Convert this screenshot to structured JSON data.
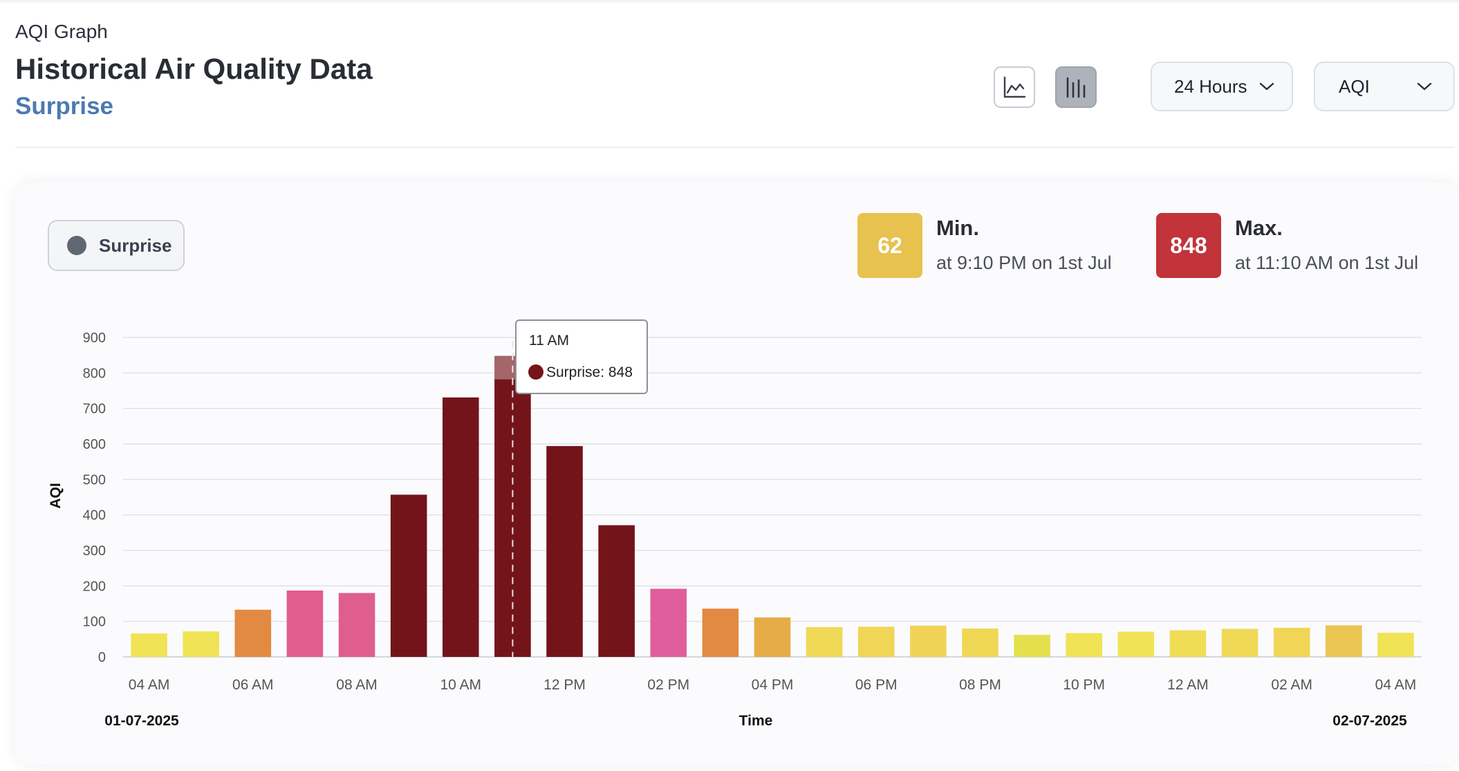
{
  "header": {
    "subtitle": "AQI Graph",
    "title": "Historical Air Quality Data",
    "location": "Surprise"
  },
  "controls": {
    "line_chart_icon": "line-chart-icon",
    "bar_chart_icon": "bar-chart-icon",
    "range_select": "24 Hours",
    "metric_select": "AQI"
  },
  "legend": {
    "label": "Surprise",
    "color": "#5f6872"
  },
  "stats": {
    "min": {
      "value": "62",
      "label": "Min.",
      "time": "at 9:10 PM on 1st Jul",
      "color": "#e8c24f"
    },
    "max": {
      "value": "848",
      "label": "Max.",
      "time": "at 11:10 AM on 1st Jul",
      "color": "#c2333a"
    }
  },
  "tooltip": {
    "time": "11 AM",
    "text": "Surprise: 848",
    "dot_color": "#761519"
  },
  "chart_data": {
    "type": "bar",
    "ylabel": "AQI",
    "xlabel": "Time",
    "ylim": [
      0,
      900
    ],
    "yticks": [
      0,
      100,
      200,
      300,
      400,
      500,
      600,
      700,
      800,
      900
    ],
    "x_tick_labels": [
      "04 AM",
      "06 AM",
      "08 AM",
      "10 AM",
      "12 PM",
      "02 PM",
      "04 PM",
      "06 PM",
      "08 PM",
      "10 PM",
      "12 AM",
      "02 AM",
      "04 AM"
    ],
    "start_date": "01-07-2025",
    "end_date": "02-07-2025",
    "grid": true,
    "series": [
      {
        "name": "Surprise",
        "values": [
          66,
          72,
          133,
          187,
          180,
          457,
          731,
          848,
          594,
          371,
          192,
          136,
          111,
          84,
          85,
          88,
          80,
          62,
          67,
          71,
          75,
          79,
          82,
          89,
          68
        ],
        "colors": [
          "#f0e356",
          "#f0e356",
          "#e38a42",
          "#e05e8c",
          "#e05e8c",
          "#73141a",
          "#73141a",
          "#73141a",
          "#73141a",
          "#73141a",
          "#e05e9c",
          "#e38a42",
          "#e6ac48",
          "#f0d956",
          "#f0d556",
          "#f0d356",
          "#f0d856",
          "#e4e04d",
          "#f0e356",
          "#f0e356",
          "#f0dd56",
          "#f0d956",
          "#f0d556",
          "#ebc552",
          "#f0e356"
        ]
      }
    ],
    "highlight_index": 7
  }
}
